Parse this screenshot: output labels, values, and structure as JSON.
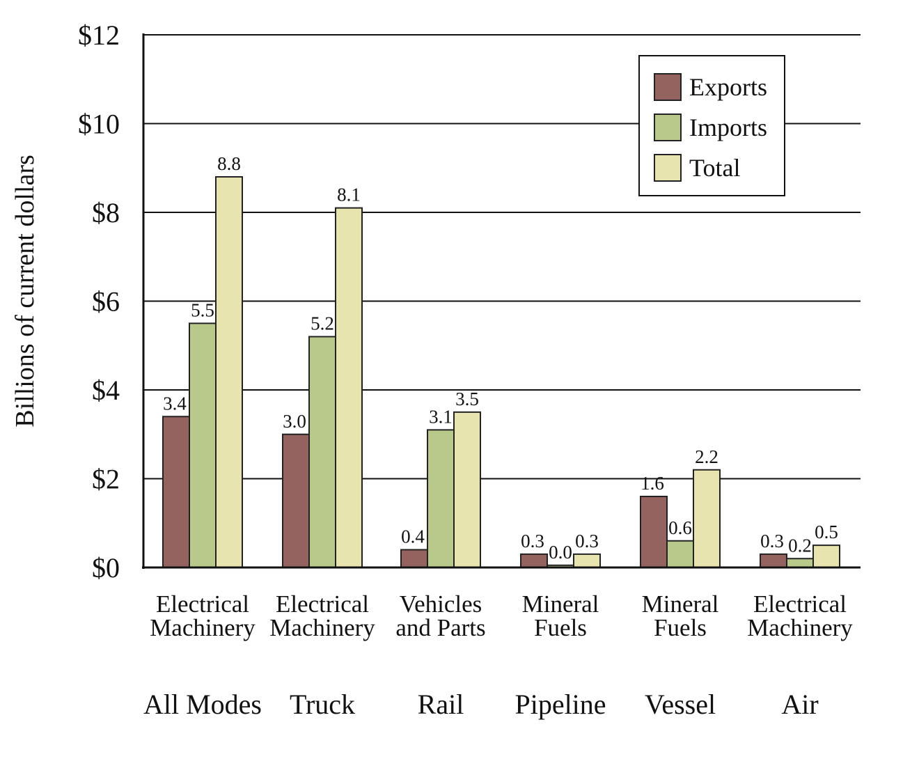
{
  "chart_data": {
    "type": "bar",
    "ylabel": "Billions of current dollars",
    "ylim": [
      0,
      12
    ],
    "yticks": [
      0,
      2,
      4,
      6,
      8,
      10,
      12
    ],
    "ytick_labels": [
      "$0",
      "$2",
      "$4",
      "$6",
      "$8",
      "$10",
      "$12"
    ],
    "grid": true,
    "legend_position": "top-right",
    "groups": [
      {
        "mode": "All Modes",
        "category": [
          "Electrical",
          "Machinery"
        ]
      },
      {
        "mode": "Truck",
        "category": [
          "Electrical",
          "Machinery"
        ]
      },
      {
        "mode": "Rail",
        "category": [
          "Vehicles",
          "and Parts"
        ]
      },
      {
        "mode": "Pipeline",
        "category": [
          "Mineral",
          "Fuels"
        ]
      },
      {
        "mode": "Vessel",
        "category": [
          "Mineral",
          "Fuels"
        ]
      },
      {
        "mode": "Air",
        "category": [
          "Electrical",
          "Machinery"
        ]
      }
    ],
    "series": [
      {
        "name": "Exports",
        "color": "#94625f",
        "values": [
          3.4,
          3.0,
          0.4,
          0.3,
          1.6,
          0.3
        ],
        "labels": [
          "3.4",
          "3.0",
          "0.4",
          "0.3",
          "1.6",
          "0.3"
        ]
      },
      {
        "name": "Imports",
        "color": "#b8c98b",
        "values": [
          5.5,
          5.2,
          3.1,
          0.05,
          0.6,
          0.2
        ],
        "labels": [
          "5.5",
          "5.2",
          "3.1",
          "0.0",
          "0.6",
          "0.2"
        ]
      },
      {
        "name": "Total",
        "color": "#e8e4b0",
        "values": [
          8.8,
          8.1,
          3.5,
          0.3,
          2.2,
          0.5
        ],
        "labels": [
          "8.8",
          "8.1",
          "3.5",
          "0.3",
          "2.2",
          "0.5"
        ]
      }
    ]
  }
}
